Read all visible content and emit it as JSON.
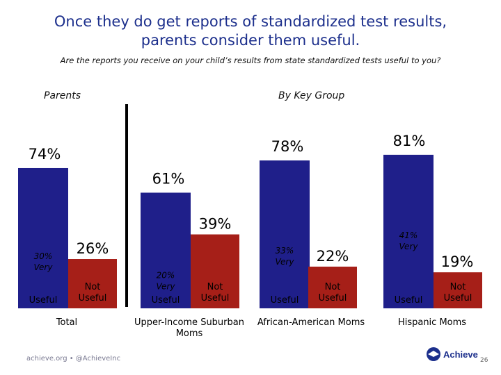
{
  "title_line1": "Once they do get reports of standardized test results,",
  "title_line2": "parents consider them useful.",
  "subtitle": "Are the reports you receive on your child’s results from state standardized tests useful to you?",
  "section_parents": "Parents",
  "section_key_group": "By Key Group",
  "footer": {
    "left_text": "achieve.org • @AchieveInc",
    "logo_text": "Achieve",
    "page_number": "26"
  },
  "colors": {
    "useful": "#1f1f8a",
    "not_useful": "#a61f18",
    "title": "#1c2f8c"
  },
  "chart_data": {
    "type": "bar",
    "title": "Are the reports you receive on your child’s results from state standardized tests useful to you?",
    "ylim": [
      0,
      100
    ],
    "categories": [
      "Total",
      "Upper-Income Suburban Moms",
      "African-American Moms",
      "Hispanic Moms"
    ],
    "series": [
      {
        "name": "Useful",
        "values": [
          74,
          61,
          78,
          81
        ],
        "labels": [
          "74%",
          "61%",
          "78%",
          "81%"
        ]
      },
      {
        "name": "Not Useful",
        "values": [
          26,
          39,
          22,
          19
        ],
        "labels": [
          "26%",
          "39%",
          "22%",
          "19%"
        ]
      },
      {
        "name": "Very useful",
        "values": [
          30,
          20,
          33,
          41
        ],
        "labels": [
          "30%",
          "20%",
          "33%",
          "41%"
        ],
        "suffix": "Very"
      }
    ],
    "bar_text_useful": "Useful",
    "bar_text_not_useful_line1": "Not",
    "bar_text_not_useful_line2": "Useful"
  }
}
